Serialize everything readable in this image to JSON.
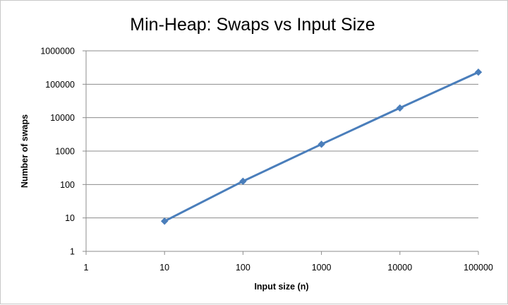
{
  "chart_data": {
    "type": "line",
    "title": "Min-Heap: Swaps vs Input Size",
    "xlabel": "Input size (n)",
    "ylabel": "Number of swaps",
    "x_scale": "log",
    "y_scale": "log",
    "xlim": [
      1,
      100000
    ],
    "ylim": [
      1,
      1000000
    ],
    "x_ticks": [
      "1",
      "10",
      "100",
      "1000",
      "10000",
      "100000"
    ],
    "y_ticks": [
      "1",
      "10",
      "100",
      "1000",
      "10000",
      "100000",
      "1000000"
    ],
    "grid": "horizontal",
    "legend": "none",
    "series": [
      {
        "x": [
          10,
          100,
          1000,
          10000,
          100000
        ],
        "values": [
          8,
          125,
          1600,
          19500,
          230000
        ],
        "color": "#4a7ebb",
        "marker": "diamond"
      }
    ]
  }
}
